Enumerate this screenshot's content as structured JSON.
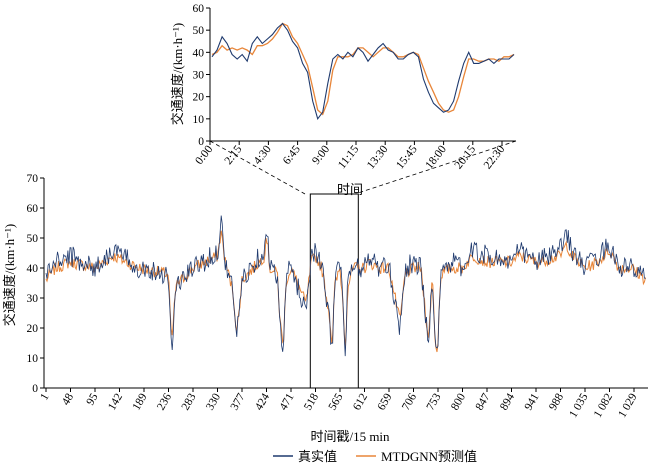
{
  "legend": {
    "actual_label": "真实值",
    "predicted_label": "MTDGNN预测值",
    "actual_color": "#1f3a6e",
    "predicted_color": "#e8863a"
  },
  "chart_data": [
    {
      "type": "line",
      "ylabel": "交通速度/(km·h⁻¹)",
      "xlabel": "时间",
      "ylim": [
        0,
        60
      ],
      "yticks": [
        0,
        10,
        20,
        30,
        40,
        50,
        60
      ],
      "x_tick_labels": [
        "0:00",
        "2:15",
        "4:30",
        "6:45",
        "9:00",
        "11:15",
        "13:30",
        "15:45",
        "18:00",
        "20:15",
        "22:30"
      ],
      "grid": false,
      "series": [
        {
          "name": "真实值",
          "values": [
            38,
            41,
            47,
            44,
            39,
            37,
            39,
            36,
            44,
            47,
            44,
            46,
            48,
            51,
            53,
            50,
            45,
            42,
            35,
            31,
            18,
            10,
            13,
            26,
            37,
            39,
            37,
            40,
            38,
            42,
            40,
            36,
            39,
            42,
            44,
            41,
            40,
            37,
            37,
            39,
            40,
            38,
            28,
            22,
            17,
            15,
            13,
            14,
            18,
            27,
            35,
            40,
            35,
            35,
            36,
            37,
            35,
            37,
            37,
            37,
            39
          ]
        },
        {
          "name": "MTDGNN预测值",
          "values": [
            39,
            40,
            43,
            41,
            42,
            41,
            42,
            41,
            39,
            43,
            43,
            44,
            46,
            49,
            53,
            52,
            47,
            44,
            39,
            34,
            24,
            14,
            12,
            18,
            32,
            38,
            38,
            38,
            39,
            42,
            42,
            40,
            38,
            40,
            42,
            42,
            40,
            38,
            38,
            39,
            40,
            39,
            33,
            27,
            22,
            17,
            14,
            13,
            14,
            20,
            29,
            37,
            37,
            36,
            36,
            37,
            37,
            36,
            38,
            38,
            39
          ]
        }
      ]
    },
    {
      "type": "line",
      "ylabel": "交通速度/(km·h⁻¹)",
      "xlabel": "时间戳/15 min",
      "ylim": [
        0,
        70
      ],
      "yticks": [
        0,
        10,
        20,
        30,
        40,
        50,
        60,
        70
      ],
      "xlim": [
        1,
        1152
      ],
      "x_tick_labels": [
        "1",
        "48",
        "95",
        "142",
        "189",
        "236",
        "283",
        "330",
        "377",
        "424",
        "471",
        "518",
        "565",
        "612",
        "659",
        "706",
        "753",
        "800",
        "847",
        "894",
        "941",
        "988",
        "1 035",
        "1 082",
        "1 029"
      ],
      "zoom_window": [
        508,
        600
      ],
      "grid": false,
      "series": [
        {
          "name": "真实值",
          "anchors": [
            [
              1,
              38
            ],
            [
              20,
              42
            ],
            [
              48,
              44
            ],
            [
              95,
              40
            ],
            [
              130,
              46
            ],
            [
              180,
              40
            ],
            [
              236,
              38
            ],
            [
              242,
              10
            ],
            [
              250,
              34
            ],
            [
              283,
              40
            ],
            [
              330,
              45
            ],
            [
              337,
              56
            ],
            [
              345,
              42
            ],
            [
              360,
              32
            ],
            [
              367,
              17
            ],
            [
              377,
              36
            ],
            [
              410,
              44
            ],
            [
              420,
              46
            ],
            [
              424,
              56
            ],
            [
              430,
              40
            ],
            [
              445,
              38
            ],
            [
              450,
              20
            ],
            [
              456,
              10
            ],
            [
              462,
              38
            ],
            [
              471,
              40
            ],
            [
              500,
              26
            ],
            [
              510,
              45
            ],
            [
              518,
              46
            ],
            [
              530,
              40
            ],
            [
              545,
              22
            ],
            [
              550,
              12
            ],
            [
              555,
              36
            ],
            [
              565,
              42
            ],
            [
              570,
              30
            ],
            [
              575,
              12
            ],
            [
              580,
              36
            ],
            [
              590,
              40
            ],
            [
              600,
              40
            ],
            [
              612,
              40
            ],
            [
              620,
              44
            ],
            [
              640,
              40
            ],
            [
              659,
              40
            ],
            [
              680,
              20
            ],
            [
              690,
              40
            ],
            [
              706,
              42
            ],
            [
              720,
              40
            ],
            [
              735,
              14
            ],
            [
              742,
              40
            ],
            [
              748,
              12
            ],
            [
              752,
              10
            ],
            [
              758,
              40
            ],
            [
              780,
              42
            ],
            [
              800,
              40
            ],
            [
              820,
              46
            ],
            [
              847,
              44
            ],
            [
              894,
              42
            ],
            [
              910,
              46
            ],
            [
              941,
              42
            ],
            [
              988,
              46
            ],
            [
              1000,
              52
            ],
            [
              1010,
              46
            ],
            [
              1035,
              40
            ],
            [
              1060,
              44
            ],
            [
              1082,
              48
            ],
            [
              1100,
              40
            ],
            [
              1125,
              40
            ],
            [
              1152,
              36
            ]
          ]
        },
        {
          "name": "MTDGNN预测值",
          "anchors": [
            [
              1,
              36
            ],
            [
              20,
              40
            ],
            [
              48,
              42
            ],
            [
              95,
              40
            ],
            [
              130,
              44
            ],
            [
              180,
              40
            ],
            [
              236,
              38
            ],
            [
              242,
              14
            ],
            [
              250,
              34
            ],
            [
              283,
              40
            ],
            [
              330,
              44
            ],
            [
              337,
              52
            ],
            [
              345,
              42
            ],
            [
              360,
              32
            ],
            [
              367,
              18
            ],
            [
              377,
              36
            ],
            [
              410,
              42
            ],
            [
              420,
              44
            ],
            [
              424,
              52
            ],
            [
              430,
              40
            ],
            [
              445,
              38
            ],
            [
              450,
              22
            ],
            [
              456,
              14
            ],
            [
              462,
              36
            ],
            [
              471,
              40
            ],
            [
              500,
              28
            ],
            [
              510,
              42
            ],
            [
              518,
              44
            ],
            [
              530,
              40
            ],
            [
              545,
              24
            ],
            [
              550,
              14
            ],
            [
              555,
              34
            ],
            [
              565,
              40
            ],
            [
              570,
              30
            ],
            [
              575,
              14
            ],
            [
              580,
              34
            ],
            [
              590,
              40
            ],
            [
              600,
              40
            ],
            [
              612,
              40
            ],
            [
              620,
              42
            ],
            [
              640,
              40
            ],
            [
              659,
              40
            ],
            [
              680,
              22
            ],
            [
              690,
              38
            ],
            [
              706,
              40
            ],
            [
              720,
              40
            ],
            [
              735,
              16
            ],
            [
              742,
              38
            ],
            [
              748,
              14
            ],
            [
              752,
              12
            ],
            [
              758,
              38
            ],
            [
              780,
              40
            ],
            [
              800,
              40
            ],
            [
              820,
              44
            ],
            [
              847,
              42
            ],
            [
              894,
              42
            ],
            [
              910,
              44
            ],
            [
              941,
              42
            ],
            [
              988,
              44
            ],
            [
              1000,
              48
            ],
            [
              1010,
              44
            ],
            [
              1035,
              40
            ],
            [
              1060,
              42
            ],
            [
              1082,
              46
            ],
            [
              1100,
              40
            ],
            [
              1125,
              40
            ],
            [
              1152,
              36
            ]
          ]
        }
      ]
    }
  ]
}
